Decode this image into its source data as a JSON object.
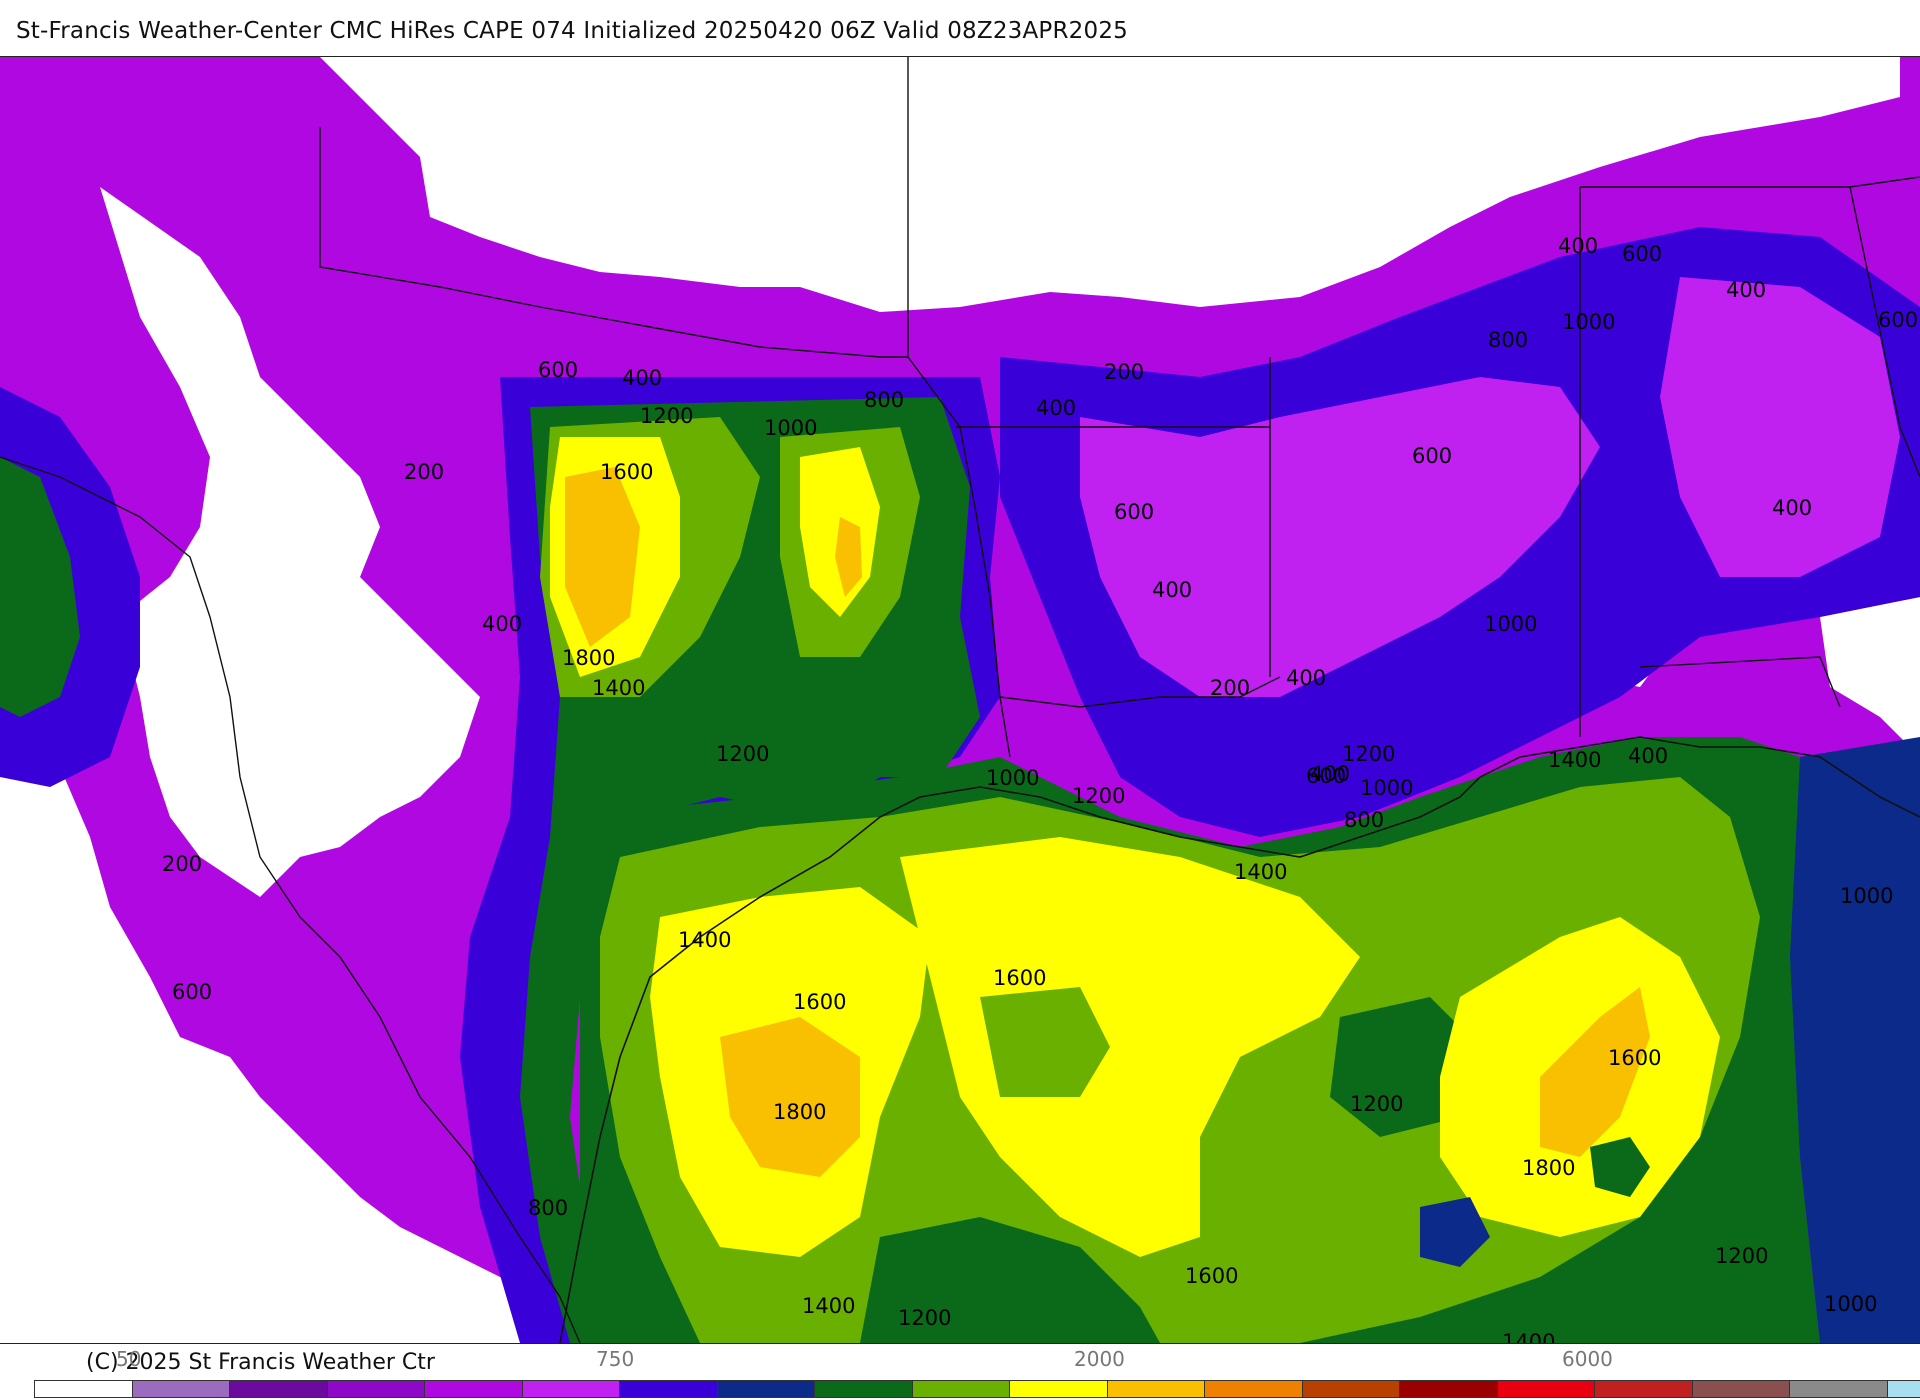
{
  "title": "St-Francis Weather-Center CMC HiRes CAPE  074 Initialized 20250420 06Z Valid 08Z23APR2025",
  "copyright": "(C) 2025 St Francis Weather Ctr",
  "colors": {
    "white": "#ffffff",
    "lavender": "#9b6bc0",
    "dark_purple": "#6a0b9e",
    "purple": "#8e08c8",
    "magenta": "#b008e0",
    "violet": "#c020f0",
    "blue_violet": "#3a00d8",
    "navy": "#0b2a8a",
    "dark_green": "#0a6a1a",
    "green": "#6ab000",
    "yellow": "#ffff00",
    "gold": "#f8c000",
    "orange": "#f08000",
    "brown_orange": "#b84000",
    "dark_red": "#9a0000",
    "red": "#e80010",
    "crimson": "#c02020",
    "mauve": "#8a5050",
    "gray": "#8a8a8a",
    "light_blue": "#a8dff0"
  },
  "legend": {
    "tick_labels": [
      "50",
      "750",
      "2000",
      "6000"
    ],
    "swatches": [
      "#ffffff",
      "#9b6bc0",
      "#6a0b9e",
      "#8e08c8",
      "#b008e0",
      "#c020f0",
      "#3a00d8",
      "#0b2a8a",
      "#0a6a1a",
      "#6ab000",
      "#ffff00",
      "#f8c000",
      "#f08000",
      "#b84000",
      "#9a0000",
      "#e80010",
      "#c02020",
      "#8a5050",
      "#8a8a8a",
      "#a8dff0"
    ]
  },
  "contour_labels": [
    "600",
    "400",
    "1200",
    "1000",
    "800",
    "200",
    "400",
    "600",
    "400",
    "1000",
    "400",
    "800",
    "600",
    "1600",
    "600",
    "600",
    "400",
    "200",
    "400",
    "400",
    "1800",
    "1400",
    "1200",
    "400",
    "1000",
    "200",
    "400",
    "1000",
    "1200",
    "600",
    "1400",
    "400",
    "1200",
    "1000",
    "800",
    "200",
    "1400",
    "1600",
    "1400",
    "600",
    "1600",
    "1800",
    "1200",
    "1600",
    "1800",
    "800",
    "1400",
    "1200",
    "1600",
    "1200",
    "1400",
    "1000",
    "1000"
  ]
}
